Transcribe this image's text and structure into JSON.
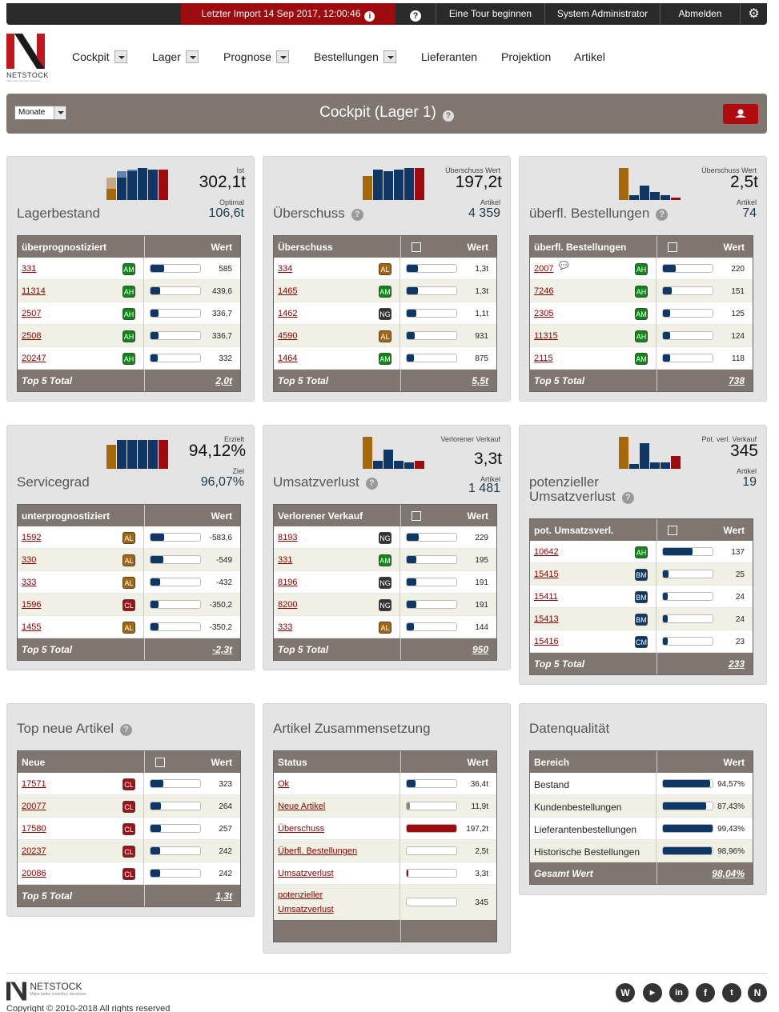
{
  "topbar": {
    "import_label": "Letzter Import 14 Sep 2017, 12:00:46",
    "tour": "Eine Tour beginnen",
    "user": "System Administrator",
    "logout": "Abmelden"
  },
  "brand": {
    "name": "NETSTOCK",
    "tagline": "Make better inventory decisions"
  },
  "nav": [
    {
      "label": "Cockpit"
    },
    {
      "label": "Lager"
    },
    {
      "label": "Prognose"
    },
    {
      "label": "Bestellungen"
    },
    {
      "label": "Lieferanten"
    },
    {
      "label": "Projektion"
    },
    {
      "label": "Artikel"
    }
  ],
  "titlebar": {
    "period": "Monate",
    "title": "Cockpit (Lager 1)"
  },
  "panels": {
    "p1": {
      "title": "Lagerbestand",
      "big_label": "Ist",
      "big": "302,1t",
      "sub_label": "Optimal",
      "sub": "106,6t",
      "col1": "überprognostiziert",
      "col2": "Wert",
      "rows": [
        {
          "code": "331",
          "badge": "AM",
          "fill": 0.28,
          "val": "585"
        },
        {
          "code": "11314",
          "badge": "AH",
          "fill": 0.2,
          "val": "439,6"
        },
        {
          "code": "2507",
          "badge": "AH",
          "fill": 0.16,
          "val": "336,7"
        },
        {
          "code": "2508",
          "badge": "AH",
          "fill": 0.16,
          "val": "336,7"
        },
        {
          "code": "20247",
          "badge": "AH",
          "fill": 0.15,
          "val": "332"
        }
      ],
      "total_label": "Top 5 Total",
      "total": "2,0t"
    },
    "p2": {
      "title": "Überschuss",
      "big_label": "Überschuss Wert",
      "big": "197,2t",
      "sub_label": "Artikel",
      "sub": "4 359",
      "col1": "Überschuss",
      "col2": "Wert",
      "rows": [
        {
          "code": "334",
          "badge": "AL",
          "fill": 0.22,
          "val": "1,3t"
        },
        {
          "code": "1465",
          "badge": "AM",
          "fill": 0.22,
          "val": "1,3t"
        },
        {
          "code": "1462",
          "badge": "NG",
          "fill": 0.2,
          "val": "1,1t"
        },
        {
          "code": "4590",
          "badge": "AL",
          "fill": 0.16,
          "val": "931"
        },
        {
          "code": "1464",
          "badge": "AM",
          "fill": 0.15,
          "val": "875"
        }
      ],
      "total_label": "Top 5 Total",
      "total": "5,5t"
    },
    "p3": {
      "title": "überfl. Bestellungen",
      "big_label": "Überschuss Wert",
      "big": "2,5t",
      "sub_label": "Artikel",
      "sub": "74",
      "col1": "überfl. Bestellungen",
      "col2": "Wert",
      "rows": [
        {
          "code": "2007",
          "badge": "AH",
          "fill": 0.25,
          "val": "220"
        },
        {
          "code": "7246",
          "badge": "AH",
          "fill": 0.18,
          "val": "151"
        },
        {
          "code": "2305",
          "badge": "AM",
          "fill": 0.15,
          "val": "125"
        },
        {
          "code": "11315",
          "badge": "AH",
          "fill": 0.15,
          "val": "124"
        },
        {
          "code": "2115",
          "badge": "AM",
          "fill": 0.14,
          "val": "118"
        }
      ],
      "total_label": "Top 5 Total",
      "total": "738"
    },
    "p4": {
      "title": "Servicegrad",
      "big_label": "Erzielt",
      "big": "94,12%",
      "sub_label": "Ziel",
      "sub": "96,07%",
      "col1": "unterprognostiziert",
      "col2": "Wert",
      "rows": [
        {
          "code": "1592",
          "badge": "AL",
          "fill": 0.27,
          "val": "-583,6"
        },
        {
          "code": "330",
          "badge": "AL",
          "fill": 0.25,
          "val": "-549"
        },
        {
          "code": "333",
          "badge": "AL",
          "fill": 0.2,
          "val": "-432"
        },
        {
          "code": "1596",
          "badge": "CL",
          "fill": 0.16,
          "val": "-350,2"
        },
        {
          "code": "1455",
          "badge": "AL",
          "fill": 0.16,
          "val": "-350,2"
        }
      ],
      "total_label": "Top 5 Total",
      "total": "-2,3t"
    },
    "p5": {
      "title": "Umsatzverlust",
      "big_label": "Verlorener Verkauf",
      "big": "3,3t",
      "sub_label": "Artikel",
      "sub": "1 481",
      "col1": "Verlorener Verkauf",
      "col2": "Wert",
      "rows": [
        {
          "code": "8193",
          "badge": "NG",
          "fill": 0.24,
          "val": "229"
        },
        {
          "code": "331",
          "badge": "AM",
          "fill": 0.2,
          "val": "195"
        },
        {
          "code": "8196",
          "badge": "NG",
          "fill": 0.2,
          "val": "191"
        },
        {
          "code": "8200",
          "badge": "NG",
          "fill": 0.2,
          "val": "191"
        },
        {
          "code": "333",
          "badge": "AL",
          "fill": 0.15,
          "val": "144"
        }
      ],
      "total_label": "Top 5 Total",
      "total": "950"
    },
    "p6": {
      "title": "potenzieller Umsatzverlust",
      "big_label": "Pot. verl. Verkauf",
      "big": "345",
      "sub_label": "Artikel",
      "sub": "19",
      "col1": "pot. Umsatzsverl.",
      "col2": "Wert",
      "rows": [
        {
          "code": "10642",
          "badge": "AH",
          "fill": 0.6,
          "val": "137"
        },
        {
          "code": "15415",
          "badge": "BM",
          "fill": 0.11,
          "val": "25"
        },
        {
          "code": "15411",
          "badge": "BM",
          "fill": 0.1,
          "val": "24"
        },
        {
          "code": "15413",
          "badge": "BM",
          "fill": 0.1,
          "val": "24"
        },
        {
          "code": "15416",
          "badge": "CM",
          "fill": 0.1,
          "val": "23"
        }
      ],
      "total_label": "Top 5 Total",
      "total": "233"
    },
    "p7": {
      "title": "Top neue Artikel",
      "col1": "Neue",
      "col2": "Wert",
      "rows": [
        {
          "code": "17571",
          "badge": "CL",
          "fill": 0.26,
          "val": "323"
        },
        {
          "code": "20077",
          "badge": "CL",
          "fill": 0.21,
          "val": "264"
        },
        {
          "code": "17580",
          "badge": "CL",
          "fill": 0.21,
          "val": "257"
        },
        {
          "code": "20237",
          "badge": "CL",
          "fill": 0.2,
          "val": "242"
        },
        {
          "code": "20086",
          "badge": "CL",
          "fill": 0.2,
          "val": "242"
        }
      ],
      "total_label": "Top 5 Total",
      "total": "1,3t"
    },
    "p8": {
      "title": "Artikel Zusammensetzung",
      "col1": "Status",
      "col2": "Wert",
      "rows": [
        {
          "label": "Ok",
          "fill": 0.18,
          "val": "36,4t",
          "color": "#0f3766"
        },
        {
          "label": "Neue Artikel",
          "fill": 0.06,
          "val": "11,9t",
          "color": "#888"
        },
        {
          "label": "Überschuss",
          "fill": 1.0,
          "val": "197,2t",
          "color": "#9e0b0f"
        },
        {
          "label": "Überfl. Bestellungen",
          "fill": 0.0,
          "val": "2,5t",
          "color": "#9e0b0f"
        },
        {
          "label": "Umsatzverlust",
          "fill": 0.02,
          "val": "3,3t",
          "color": "#9e0b0f"
        },
        {
          "label": "potenzieller Umsatzverlust",
          "fill": 0.0,
          "val": "345",
          "color": "#9e0b0f"
        }
      ]
    },
    "p9": {
      "title": "Datenqualität",
      "col1": "Bereich",
      "col2": "Wert",
      "rows": [
        {
          "label": "Bestand",
          "fill": 0.9457,
          "val": "94,57%"
        },
        {
          "label": "Kundenbestellungen",
          "fill": 0.8743,
          "val": "87,43%"
        },
        {
          "label": "Lieferantenbestellungen",
          "fill": 0.9943,
          "val": "99,43%"
        },
        {
          "label": "Historische Bestellungen",
          "fill": 0.9896,
          "val": "98,96%"
        }
      ],
      "total_label": "Gesamt Wert",
      "total": "98,04%"
    }
  },
  "footer": {
    "copyright": "Copyright © 2010-2018 All rights reserved"
  },
  "colors": {
    "navy": "#0f3766",
    "brown": "#a6660a",
    "red": "#9e0b0f",
    "header_gray": "#7f7670"
  }
}
